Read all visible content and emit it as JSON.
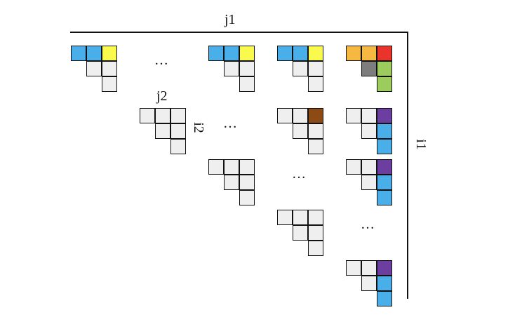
{
  "labels": {
    "j1": "j1",
    "i1": "i1",
    "j2": "j2",
    "i2": "i2",
    "ellipsis": "…"
  },
  "colors": {
    "empty": "#efefef",
    "blue": "#4aaee8",
    "yellow": "#fafa4e",
    "orange": "#f5b840",
    "red": "#e8342a",
    "gray": "#7d7d7d",
    "green": "#9dcc5e",
    "brown": "#8c4a14",
    "purple": "#6b3ea0"
  },
  "blocks": [
    {
      "name": "block-r0-c0",
      "cells": [
        "blue",
        "blue",
        "yellow",
        "empty",
        "empty",
        "empty"
      ]
    },
    {
      "name": "block-r0-c2",
      "cells": [
        "blue",
        "blue",
        "yellow",
        "empty",
        "empty",
        "empty"
      ]
    },
    {
      "name": "block-r0-c3",
      "cells": [
        "blue",
        "blue",
        "yellow",
        "empty",
        "empty",
        "empty"
      ]
    },
    {
      "name": "block-r0-c4",
      "cells": [
        "orange",
        "orange",
        "red",
        "gray",
        "green",
        "green"
      ]
    },
    {
      "name": "block-r1-c1",
      "cells": [
        "empty",
        "empty",
        "empty",
        "empty",
        "empty",
        "empty"
      ]
    },
    {
      "name": "block-r1-c3",
      "cells": [
        "empty",
        "empty",
        "brown",
        "empty",
        "empty",
        "empty"
      ]
    },
    {
      "name": "block-r1-c4",
      "cells": [
        "empty",
        "empty",
        "purple",
        "empty",
        "blue",
        "blue"
      ]
    },
    {
      "name": "block-r2-c2",
      "cells": [
        "empty",
        "empty",
        "empty",
        "empty",
        "empty",
        "empty"
      ]
    },
    {
      "name": "block-r2-c4",
      "cells": [
        "empty",
        "empty",
        "purple",
        "empty",
        "blue",
        "blue"
      ]
    },
    {
      "name": "block-r3-c3",
      "cells": [
        "empty",
        "empty",
        "empty",
        "empty",
        "empty",
        "empty"
      ]
    },
    {
      "name": "block-r4-c4",
      "cells": [
        "empty",
        "empty",
        "purple",
        "empty",
        "blue",
        "blue"
      ]
    }
  ]
}
